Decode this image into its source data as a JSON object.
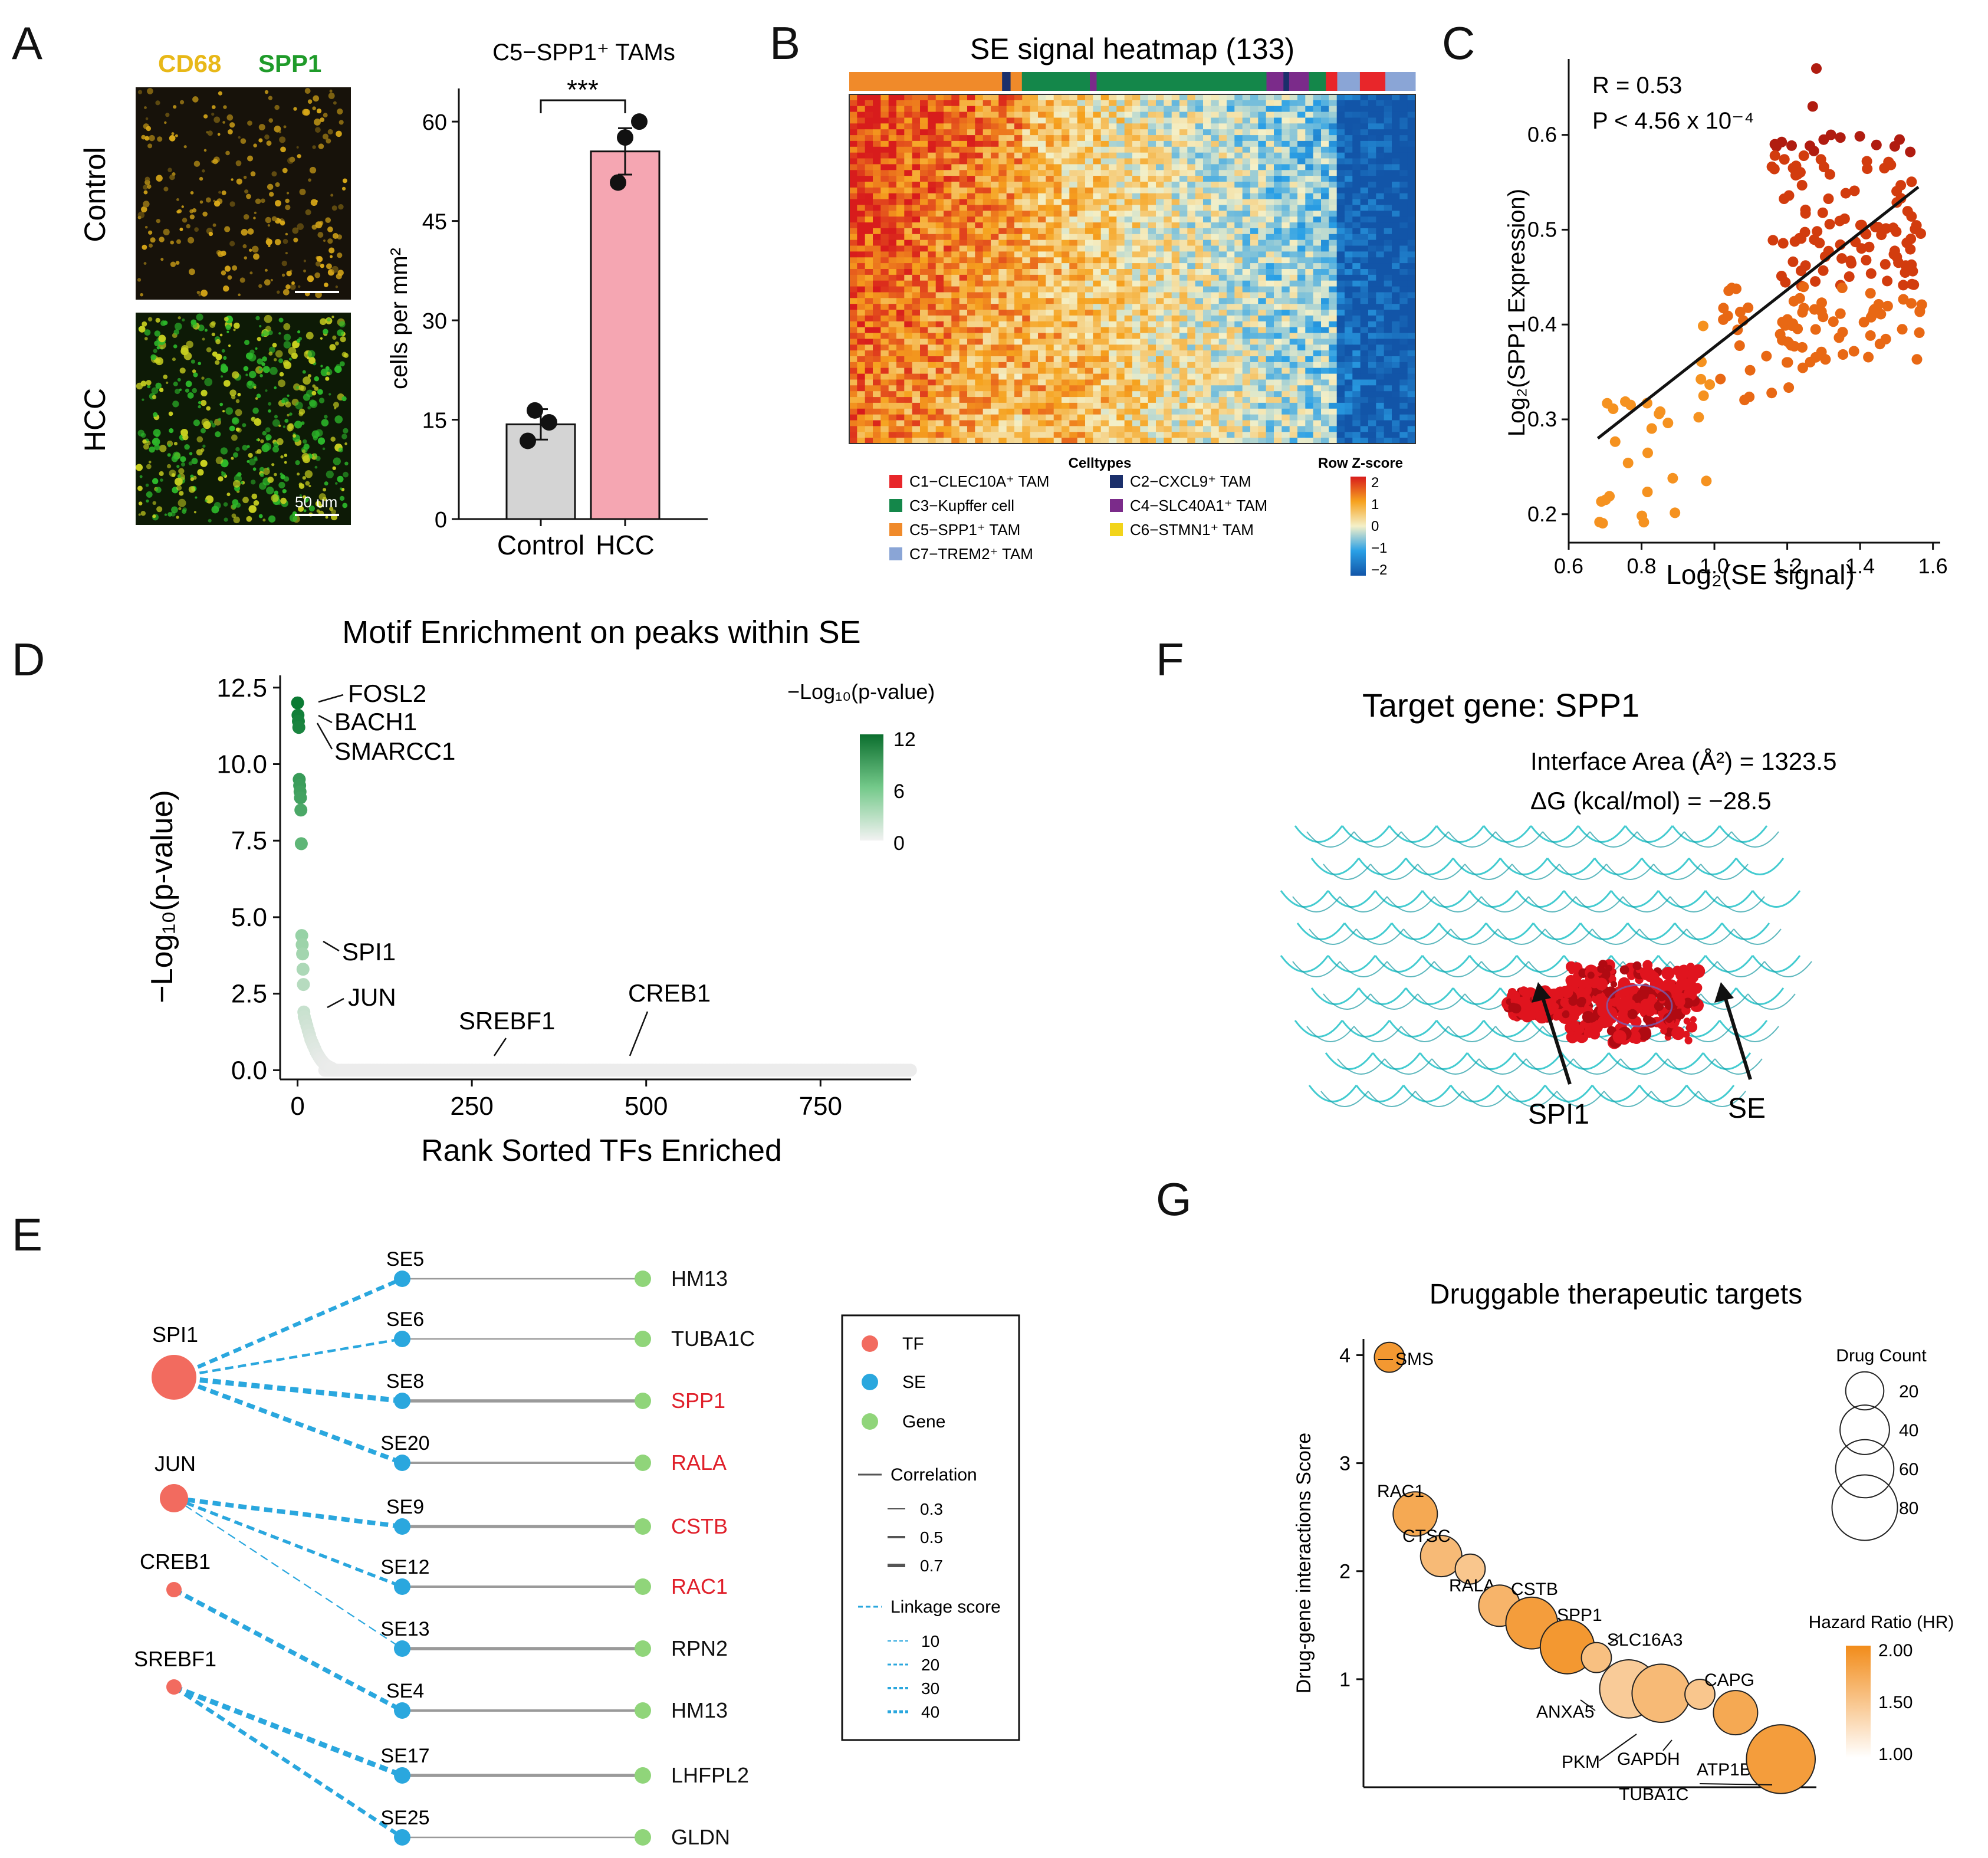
{
  "panel_letters": {
    "a": "A",
    "b": "B",
    "c": "C",
    "d": "D",
    "e": "E",
    "f": "F",
    "g": "G"
  },
  "colors": {
    "cd68": "#e8b818",
    "spp1_stain": "#1f9b2a",
    "hcc_bar": "#f5a6b2",
    "control_bar": "#d4d4d4",
    "tf": "#f26b5f",
    "se": "#2aa7de",
    "gene": "#90d57a",
    "red_text": "#e0202b",
    "motif_dark": "#0b7a33",
    "orange": "#f08a1a",
    "darkred": "#b01c10",
    "cyan": "#22c2c8",
    "protein": "#e0141e"
  },
  "panelA": {
    "stain_cd68": "CD68",
    "stain_spp1": "SPP1",
    "row1": "Control",
    "row2": "HCC",
    "scalebar": "50 um",
    "chart_data": {
      "type": "bar",
      "title": "C5−SPP1⁺ TAMs",
      "ylabel": "cells per mm²",
      "ylim": [
        0,
        65
      ],
      "yticks": [
        "0",
        "15",
        "30",
        "45",
        "60"
      ],
      "categories": [
        "Control",
        "HCC"
      ],
      "values": [
        14.3,
        55.5
      ],
      "errors": [
        2.3,
        3.5
      ],
      "points": [
        [
          16.4,
          14.6,
          11.8
        ],
        [
          57.6,
          60.0,
          50.8
        ]
      ],
      "significance": "***"
    }
  },
  "panelB": {
    "title": "SE signal heatmap (133)",
    "legend_title": "Celltypes",
    "zscore_title": "Row Z-score",
    "zticks": [
      "2",
      "1",
      "0",
      "−1",
      "−2"
    ],
    "celltypes": [
      {
        "label": "C1−CLEC10A⁺ TAM",
        "color": "#e8262a"
      },
      {
        "label": "C2−CXCL9⁺ TAM",
        "color": "#1b2f6b"
      },
      {
        "label": "C3−Kupffer cell",
        "color": "#14874a"
      },
      {
        "label": "C4−SLC40A1⁺ TAM",
        "color": "#7b2b8a"
      },
      {
        "label": "C5−SPP1⁺ TAM",
        "color": "#f08a2a"
      },
      {
        "label": "C6−STMN1⁺ TAM",
        "color": "#f2d41a"
      },
      {
        "label": "C7−TREM2⁺ TAM",
        "color": "#8aa5d6"
      }
    ]
  },
  "panelC": {
    "chart_data": {
      "type": "scatter",
      "xlabel": "Log₂(SE signal)",
      "ylabel": "Log₂(SPP1 Expression)",
      "xlim": [
        0.6,
        1.62
      ],
      "ylim": [
        0.17,
        0.68
      ],
      "xticks": [
        "0.6",
        "0.8",
        "1.0",
        "1.2",
        "1.4",
        "1.6"
      ],
      "yticks": [
        "0.2",
        "0.3",
        "0.4",
        "0.5",
        "0.6"
      ],
      "fit": {
        "x0": 0.68,
        "y0": 0.28,
        "x1": 1.56,
        "y1": 0.545
      },
      "n_points": 210
    },
    "stat_r": "R = 0.53",
    "stat_p": "P < 4.56 x 10⁻⁴"
  },
  "panelD": {
    "chart_data": {
      "type": "scatter",
      "title": "Motif Enrichment on peaks within SE",
      "xlabel": "Rank Sorted TFs Enriched",
      "ylabel": "−Log₁₀(p-value)",
      "xlim": [
        -25,
        880
      ],
      "ylim": [
        -0.3,
        12.9
      ],
      "xticks": [
        "0",
        "250",
        "500",
        "750"
      ],
      "yticks": [
        "0.0",
        "2.5",
        "5.0",
        "7.5",
        "10.0",
        "12.5"
      ],
      "top_values": [
        12.0,
        11.6,
        11.4,
        11.2,
        9.5,
        9.3,
        9.1,
        8.9,
        8.5,
        7.4,
        4.4,
        4.1,
        3.8,
        3.3,
        2.8,
        1.9,
        1.75,
        1.6,
        1.45,
        1.3,
        1.15,
        1.0,
        0.9,
        0.8,
        0.7,
        0.6,
        0.52,
        0.45,
        0.38,
        0.32,
        0.27,
        0.22,
        0.18,
        0.15,
        0.12,
        0.1,
        0.08,
        0.06
      ],
      "n_total": 880,
      "labels": [
        {
          "name": "FOSL2",
          "rank": 1
        },
        {
          "name": "BACH1",
          "rank": 2
        },
        {
          "name": "SMARCC1",
          "rank": 3
        },
        {
          "name": "SPI1",
          "rank": 12
        },
        {
          "name": "JUN",
          "rank": 16
        },
        {
          "name": "SREBF1",
          "rank": 280
        },
        {
          "name": "CREB1",
          "rank": 480
        }
      ]
    },
    "legend_title": "−Log₁₀(p-value)",
    "legend_ticks": [
      "12",
      "6",
      "0"
    ]
  },
  "panelE": {
    "tfs": [
      "SPI1",
      "JUN",
      "CREB1",
      "SREBF1"
    ],
    "ses": [
      "SE5",
      "SE6",
      "SE8",
      "SE20",
      "SE9",
      "SE12",
      "SE13",
      "SE4",
      "SE17",
      "SE25"
    ],
    "genes": [
      "HM13",
      "TUBA1C",
      "SPP1",
      "RALA",
      "CSTB",
      "RAC1",
      "RPN2",
      "HM13",
      "LHFPL2",
      "GLDN"
    ],
    "red_genes": [
      2,
      3,
      4,
      5
    ],
    "links": [
      [
        0,
        0,
        30
      ],
      [
        0,
        1,
        20
      ],
      [
        0,
        2,
        40
      ],
      [
        0,
        3,
        35
      ],
      [
        1,
        4,
        35
      ],
      [
        1,
        5,
        25
      ],
      [
        1,
        6,
        10
      ],
      [
        2,
        7,
        35
      ],
      [
        3,
        8,
        40
      ],
      [
        3,
        9,
        30
      ]
    ],
    "correlations": [
      0.3,
      0.3,
      0.7,
      0.5,
      0.7,
      0.5,
      0.7,
      0.5,
      0.7,
      0.3
    ],
    "legend": {
      "tf": "TF",
      "se": "SE",
      "gene": "Gene",
      "correlation": "Correlation",
      "corr_values": [
        "0.3",
        "0.5",
        "0.7"
      ],
      "linkage": "Linkage score",
      "link_values": [
        "10",
        "20",
        "30",
        "40"
      ]
    }
  },
  "panelF": {
    "title": "Target gene: SPP1",
    "interface": "Interface Area (Å²) = 1323.5",
    "dg": "ΔG (kcal/mol) = −28.5",
    "label_left": "SPI1",
    "label_right": "SE"
  },
  "panelG": {
    "chart_data": {
      "type": "scatter",
      "title": "Druggable therapeutic targets",
      "ylabel": "Drug-gene interactions Score",
      "xlim": [
        0,
        14
      ],
      "ylim": [
        0,
        4.15
      ],
      "yticks": [
        "1",
        "2",
        "3",
        "4"
      ],
      "points": [
        {
          "gene": "SMS",
          "x": 0.8,
          "y": 3.98,
          "drugs": 10,
          "hr": 1.9
        },
        {
          "gene": "RAC1",
          "x": 1.6,
          "y": 2.53,
          "drugs": 30,
          "hr": 1.75
        },
        {
          "gene": "CTSC",
          "x": 2.4,
          "y": 2.14,
          "drugs": 25,
          "hr": 1.6
        },
        {
          "gene": "RALA",
          "x": 3.3,
          "y": 2.02,
          "drugs": 10,
          "hr": 1.5
        },
        {
          "gene": "CSTB",
          "x": 4.2,
          "y": 1.68,
          "drugs": 25,
          "hr": 1.65
        },
        {
          "gene": "SPP1",
          "x": 5.2,
          "y": 1.52,
          "drugs": 45,
          "hr": 1.85
        },
        {
          "gene": "ANXA5",
          "x": 6.3,
          "y": 1.3,
          "drugs": 50,
          "hr": 1.9
        },
        {
          "gene": "SLC16A3",
          "x": 7.2,
          "y": 1.2,
          "drugs": 10,
          "hr": 1.55
        },
        {
          "gene": "PKM",
          "x": 8.2,
          "y": 0.91,
          "drugs": 60,
          "hr": 1.45
        },
        {
          "gene": "GAPDH",
          "x": 9.2,
          "y": 0.87,
          "drugs": 60,
          "hr": 1.6
        },
        {
          "gene": "CAPG",
          "x": 10.4,
          "y": 0.86,
          "drugs": 10,
          "hr": 1.5
        },
        {
          "gene": "ATP1B3",
          "x": 11.5,
          "y": 0.69,
          "drugs": 30,
          "hr": 1.75
        },
        {
          "gene": "TUBA1C",
          "x": 12.9,
          "y": 0.26,
          "drugs": 90,
          "hr": 1.85
        }
      ]
    },
    "size_title": "Drug Count",
    "size_values": [
      "20",
      "40",
      "60",
      "80"
    ],
    "hr_title": "Hazard Ratio (HR)",
    "hr_values": [
      "2.00",
      "1.50",
      "1.00"
    ]
  }
}
